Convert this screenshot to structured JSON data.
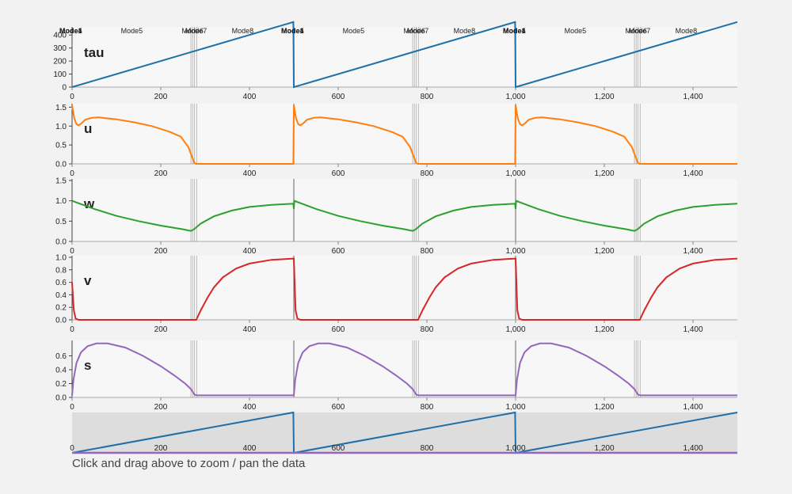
{
  "hint_text": "Click and drag above to zoom / pan the data",
  "colors": {
    "tau": "#1f6fa8",
    "u": "#ff7f0e",
    "w": "#2ca02c",
    "v": "#d62728",
    "s": "#9467bd",
    "mode_line": "#bbbbbb",
    "cycle_line": "#888888",
    "navigator_bg": "#dddddd"
  },
  "mode_markers": {
    "cycle_length": 500,
    "labels": [
      {
        "text": "Mode1",
        "x": 0
      },
      {
        "text": "Mode4",
        "x": 0
      },
      {
        "text": "Mode5",
        "x": 135
      },
      {
        "text": "Mode6",
        "x": 272
      },
      {
        "text": "Mode7",
        "x": 280
      },
      {
        "text": "Mode8",
        "x": 385
      }
    ],
    "grey_lines_x": [
      268,
      272,
      276,
      281
    ]
  },
  "chart_data": {
    "type": "line",
    "x_domain": [
      0,
      1500
    ],
    "x_ticks": [
      0,
      200,
      400,
      600,
      800,
      1000,
      1200,
      1400
    ],
    "x_tick_labels": [
      "0",
      "200",
      "400",
      "600",
      "800",
      "1,000",
      "1,200",
      "1,400"
    ],
    "panels": [
      {
        "name": "tau",
        "label": "tau",
        "ylim": [
          0,
          450
        ],
        "yticks": [
          0,
          100,
          200,
          300,
          400
        ],
        "yticklabels": [
          "0",
          "100",
          "200",
          "300",
          "400"
        ],
        "points": [
          [
            0,
            0
          ],
          [
            499,
            500
          ],
          [
            500,
            0
          ],
          [
            999,
            500
          ],
          [
            1000,
            0
          ],
          [
            1500,
            500
          ]
        ]
      },
      {
        "name": "u",
        "label": "u",
        "ylim": [
          0,
          1.55
        ],
        "yticks": [
          0,
          0.5,
          1.0,
          1.5
        ],
        "yticklabels": [
          "0.0",
          "0.5",
          "1.0",
          "1.5"
        ],
        "points": [
          [
            0,
            1.55
          ],
          [
            5,
            1.2
          ],
          [
            10,
            1.05
          ],
          [
            15,
            1.02
          ],
          [
            22,
            1.08
          ],
          [
            30,
            1.17
          ],
          [
            45,
            1.22
          ],
          [
            60,
            1.23
          ],
          [
            100,
            1.18
          ],
          [
            140,
            1.1
          ],
          [
            180,
            1.0
          ],
          [
            220,
            0.85
          ],
          [
            245,
            0.72
          ],
          [
            262,
            0.45
          ],
          [
            270,
            0.2
          ],
          [
            276,
            0.02
          ],
          [
            280,
            0
          ],
          [
            499,
            0
          ],
          [
            500,
            1.55
          ],
          [
            505,
            1.2
          ],
          [
            510,
            1.05
          ],
          [
            515,
            1.02
          ],
          [
            522,
            1.08
          ],
          [
            530,
            1.17
          ],
          [
            545,
            1.22
          ],
          [
            560,
            1.23
          ],
          [
            600,
            1.18
          ],
          [
            640,
            1.1
          ],
          [
            680,
            1.0
          ],
          [
            720,
            0.85
          ],
          [
            745,
            0.72
          ],
          [
            762,
            0.45
          ],
          [
            770,
            0.2
          ],
          [
            776,
            0.02
          ],
          [
            780,
            0
          ],
          [
            999,
            0
          ],
          [
            1000,
            1.55
          ],
          [
            1005,
            1.2
          ],
          [
            1010,
            1.05
          ],
          [
            1015,
            1.02
          ],
          [
            1022,
            1.08
          ],
          [
            1030,
            1.17
          ],
          [
            1045,
            1.22
          ],
          [
            1060,
            1.23
          ],
          [
            1100,
            1.18
          ],
          [
            1140,
            1.1
          ],
          [
            1180,
            1.0
          ],
          [
            1220,
            0.85
          ],
          [
            1245,
            0.72
          ],
          [
            1262,
            0.45
          ],
          [
            1270,
            0.2
          ],
          [
            1276,
            0.02
          ],
          [
            1280,
            0
          ],
          [
            1500,
            0
          ]
        ]
      },
      {
        "name": "w",
        "label": "w",
        "ylim": [
          0,
          1.5
        ],
        "yticks": [
          0,
          0.5,
          1.0,
          1.5
        ],
        "yticklabels": [
          "0.0",
          "0.5",
          "1.0",
          "1.5"
        ],
        "points": [
          [
            0,
            1.0
          ],
          [
            50,
            0.8
          ],
          [
            100,
            0.63
          ],
          [
            150,
            0.5
          ],
          [
            200,
            0.39
          ],
          [
            250,
            0.3
          ],
          [
            268,
            0.26
          ],
          [
            275,
            0.3
          ],
          [
            290,
            0.44
          ],
          [
            320,
            0.62
          ],
          [
            360,
            0.76
          ],
          [
            400,
            0.85
          ],
          [
            450,
            0.9
          ],
          [
            499,
            0.93
          ],
          [
            500,
            0.8
          ],
          [
            501,
            1.0
          ],
          [
            550,
            0.8
          ],
          [
            600,
            0.63
          ],
          [
            650,
            0.5
          ],
          [
            700,
            0.39
          ],
          [
            750,
            0.3
          ],
          [
            768,
            0.26
          ],
          [
            775,
            0.3
          ],
          [
            790,
            0.44
          ],
          [
            820,
            0.62
          ],
          [
            860,
            0.76
          ],
          [
            900,
            0.85
          ],
          [
            950,
            0.9
          ],
          [
            999,
            0.93
          ],
          [
            1000,
            0.8
          ],
          [
            1001,
            1.0
          ],
          [
            1050,
            0.8
          ],
          [
            1100,
            0.63
          ],
          [
            1150,
            0.5
          ],
          [
            1200,
            0.39
          ],
          [
            1250,
            0.3
          ],
          [
            1268,
            0.26
          ],
          [
            1275,
            0.3
          ],
          [
            1290,
            0.44
          ],
          [
            1320,
            0.62
          ],
          [
            1360,
            0.76
          ],
          [
            1400,
            0.85
          ],
          [
            1450,
            0.9
          ],
          [
            1500,
            0.93
          ]
        ]
      },
      {
        "name": "v",
        "label": "v",
        "ylim": [
          0,
          1.0
        ],
        "yticks": [
          0,
          0.2,
          0.4,
          0.6,
          0.8,
          1.0
        ],
        "yticklabels": [
          "0.0",
          "0.2",
          "0.4",
          "0.6",
          "0.8",
          "1.0"
        ],
        "points": [
          [
            0,
            0.6
          ],
          [
            4,
            0.15
          ],
          [
            8,
            0.02
          ],
          [
            15,
            0
          ],
          [
            280,
            0
          ],
          [
            290,
            0.15
          ],
          [
            305,
            0.35
          ],
          [
            320,
            0.52
          ],
          [
            340,
            0.68
          ],
          [
            370,
            0.82
          ],
          [
            400,
            0.9
          ],
          [
            450,
            0.96
          ],
          [
            499,
            0.98
          ],
          [
            500,
            0.98
          ],
          [
            504,
            0.15
          ],
          [
            508,
            0.02
          ],
          [
            515,
            0
          ],
          [
            780,
            0
          ],
          [
            790,
            0.15
          ],
          [
            805,
            0.35
          ],
          [
            820,
            0.52
          ],
          [
            840,
            0.68
          ],
          [
            870,
            0.82
          ],
          [
            900,
            0.9
          ],
          [
            950,
            0.96
          ],
          [
            999,
            0.98
          ],
          [
            1000,
            0.98
          ],
          [
            1004,
            0.15
          ],
          [
            1008,
            0.02
          ],
          [
            1015,
            0
          ],
          [
            1280,
            0
          ],
          [
            1290,
            0.15
          ],
          [
            1305,
            0.35
          ],
          [
            1320,
            0.52
          ],
          [
            1340,
            0.68
          ],
          [
            1370,
            0.82
          ],
          [
            1400,
            0.9
          ],
          [
            1450,
            0.96
          ],
          [
            1500,
            0.98
          ]
        ]
      },
      {
        "name": "s",
        "label": "s",
        "ylim": [
          0,
          0.8
        ],
        "yticks": [
          0,
          0.2,
          0.4,
          0.6
        ],
        "yticklabels": [
          "0.0",
          "0.2",
          "0.4",
          "0.6"
        ],
        "points": [
          [
            0,
            0.03
          ],
          [
            3,
            0.25
          ],
          [
            10,
            0.5
          ],
          [
            20,
            0.65
          ],
          [
            35,
            0.74
          ],
          [
            55,
            0.78
          ],
          [
            80,
            0.78
          ],
          [
            120,
            0.72
          ],
          [
            160,
            0.6
          ],
          [
            200,
            0.45
          ],
          [
            230,
            0.32
          ],
          [
            255,
            0.2
          ],
          [
            268,
            0.12
          ],
          [
            276,
            0.04
          ],
          [
            282,
            0.03
          ],
          [
            499,
            0.03
          ],
          [
            500,
            0.03
          ],
          [
            503,
            0.25
          ],
          [
            510,
            0.5
          ],
          [
            520,
            0.65
          ],
          [
            535,
            0.74
          ],
          [
            555,
            0.78
          ],
          [
            580,
            0.78
          ],
          [
            620,
            0.72
          ],
          [
            660,
            0.6
          ],
          [
            700,
            0.45
          ],
          [
            730,
            0.32
          ],
          [
            755,
            0.2
          ],
          [
            768,
            0.12
          ],
          [
            776,
            0.04
          ],
          [
            782,
            0.03
          ],
          [
            999,
            0.03
          ],
          [
            1000,
            0.03
          ],
          [
            1003,
            0.25
          ],
          [
            1010,
            0.5
          ],
          [
            1020,
            0.65
          ],
          [
            1035,
            0.74
          ],
          [
            1055,
            0.78
          ],
          [
            1080,
            0.78
          ],
          [
            1120,
            0.72
          ],
          [
            1160,
            0.6
          ],
          [
            1200,
            0.45
          ],
          [
            1230,
            0.32
          ],
          [
            1255,
            0.2
          ],
          [
            1268,
            0.12
          ],
          [
            1276,
            0.04
          ],
          [
            1282,
            0.03
          ],
          [
            1500,
            0.03
          ]
        ]
      }
    ],
    "navigator": {
      "tau_points": [
        [
          0,
          0
        ],
        [
          499,
          500
        ],
        [
          500,
          0
        ],
        [
          999,
          500
        ],
        [
          1000,
          0
        ],
        [
          1500,
          500
        ]
      ],
      "ylim": [
        0,
        500
      ],
      "x_tick_labels_shown": true
    }
  }
}
